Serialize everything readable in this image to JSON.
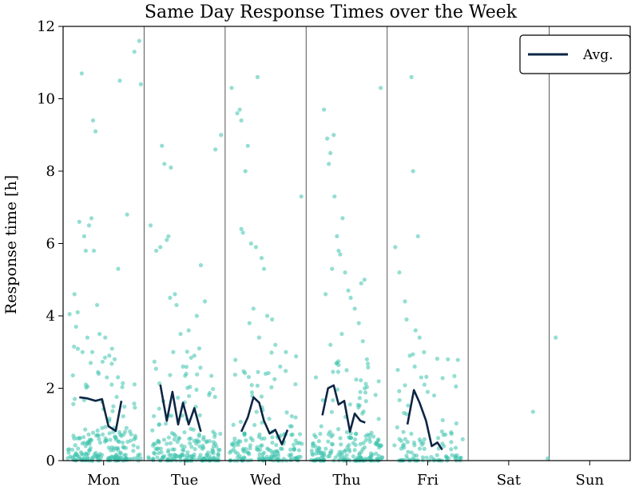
{
  "chart_data": {
    "type": "scatter",
    "title": "Same Day Response Times over the Week",
    "xlabel": "",
    "ylabel": "Response time [h]",
    "ylim": [
      0,
      12
    ],
    "yticks": [
      "0",
      "2",
      "4",
      "6",
      "8",
      "10",
      "12"
    ],
    "categories": [
      "Mon",
      "Tue",
      "Wed",
      "Thu",
      "Fri",
      "Sat",
      "Sun"
    ],
    "grid": false,
    "legend": {
      "position": "top-right",
      "entries": [
        "Avg."
      ]
    },
    "colors": {
      "points": "#3cc3ad",
      "avg_line": "#0d2545",
      "separator": "#555555"
    },
    "series": [
      {
        "name": "Avg.",
        "type": "line",
        "points": [
          {
            "x": -0.3,
            "y": 1.75
          },
          {
            "x": -0.2,
            "y": 1.72
          },
          {
            "x": -0.1,
            "y": 1.65
          },
          {
            "x": -0.02,
            "y": 1.7
          },
          {
            "x": 0.06,
            "y": 0.95
          },
          {
            "x": 0.15,
            "y": 0.82
          },
          {
            "x": 0.22,
            "y": 1.65
          },
          {
            "x": 0.7,
            "y": 2.1
          },
          {
            "x": 0.78,
            "y": 1.1
          },
          {
            "x": 0.85,
            "y": 1.9
          },
          {
            "x": 0.92,
            "y": 1.0
          },
          {
            "x": 0.98,
            "y": 1.6
          },
          {
            "x": 1.05,
            "y": 1.0
          },
          {
            "x": 1.12,
            "y": 1.45
          },
          {
            "x": 1.2,
            "y": 0.8
          },
          {
            "x": 1.7,
            "y": 0.8
          },
          {
            "x": 1.78,
            "y": 1.2
          },
          {
            "x": 1.85,
            "y": 1.75
          },
          {
            "x": 1.92,
            "y": 1.6
          },
          {
            "x": 1.98,
            "y": 1.1
          },
          {
            "x": 2.05,
            "y": 0.75
          },
          {
            "x": 2.12,
            "y": 0.85
          },
          {
            "x": 2.2,
            "y": 0.45
          },
          {
            "x": 2.27,
            "y": 0.85
          },
          {
            "x": 2.7,
            "y": 1.25
          },
          {
            "x": 2.77,
            "y": 2.0
          },
          {
            "x": 2.84,
            "y": 2.08
          },
          {
            "x": 2.9,
            "y": 1.55
          },
          {
            "x": 2.97,
            "y": 1.65
          },
          {
            "x": 3.04,
            "y": 0.8
          },
          {
            "x": 3.1,
            "y": 1.3
          },
          {
            "x": 3.17,
            "y": 1.1
          },
          {
            "x": 3.23,
            "y": 1.05
          },
          {
            "x": 3.75,
            "y": 1.0
          },
          {
            "x": 3.83,
            "y": 1.95
          },
          {
            "x": 3.9,
            "y": 1.6
          },
          {
            "x": 3.98,
            "y": 1.1
          },
          {
            "x": 4.05,
            "y": 0.4
          },
          {
            "x": 4.12,
            "y": 0.5
          },
          {
            "x": 4.18,
            "y": 0.3
          }
        ]
      }
    ],
    "scatter_points": [
      {
        "x": -0.42,
        "y": 4.05
      },
      {
        "x": -0.36,
        "y": 4.6
      },
      {
        "x": -0.34,
        "y": 3.7
      },
      {
        "x": -0.32,
        "y": 4.1
      },
      {
        "x": -0.3,
        "y": 6.6
      },
      {
        "x": -0.27,
        "y": 10.7
      },
      {
        "x": -0.24,
        "y": 6.2
      },
      {
        "x": -0.22,
        "y": 5.8
      },
      {
        "x": -0.2,
        "y": 3.4
      },
      {
        "x": -0.18,
        "y": 6.5
      },
      {
        "x": -0.15,
        "y": 6.7
      },
      {
        "x": -0.13,
        "y": 9.4
      },
      {
        "x": -0.1,
        "y": 9.1
      },
      {
        "x": -0.12,
        "y": 5.8
      },
      {
        "x": -0.08,
        "y": 4.3
      },
      {
        "x": -0.05,
        "y": 3.5
      },
      {
        "x": 0.02,
        "y": 3.4
      },
      {
        "x": 0.07,
        "y": 2.9
      },
      {
        "x": 0.1,
        "y": 2.1
      },
      {
        "x": 0.18,
        "y": 5.3
      },
      {
        "x": 0.2,
        "y": 10.5
      },
      {
        "x": 0.29,
        "y": 6.8
      },
      {
        "x": 0.38,
        "y": 11.3
      },
      {
        "x": 0.44,
        "y": 11.6
      },
      {
        "x": 0.46,
        "y": 10.4
      },
      {
        "x": -0.26,
        "y": 3.0
      },
      {
        "x": -0.16,
        "y": 2.7
      },
      {
        "x": -0.06,
        "y": 2.4
      },
      {
        "x": 0.12,
        "y": 1.5
      },
      {
        "x": 0.04,
        "y": 2.3
      },
      {
        "x": -0.22,
        "y": 2.1
      },
      {
        "x": -0.14,
        "y": 3.0
      },
      {
        "x": 0.42,
        "y": 0.08
      },
      {
        "x": 0.46,
        "y": 0.06
      },
      {
        "x": 0.72,
        "y": 8.7
      },
      {
        "x": 0.75,
        "y": 8.2
      },
      {
        "x": 0.8,
        "y": 6.2
      },
      {
        "x": 0.83,
        "y": 8.1
      },
      {
        "x": 0.58,
        "y": 6.5
      },
      {
        "x": 0.65,
        "y": 5.8
      },
      {
        "x": 0.7,
        "y": 5.9
      },
      {
        "x": 0.78,
        "y": 6.1
      },
      {
        "x": 0.82,
        "y": 4.5
      },
      {
        "x": 0.88,
        "y": 4.6
      },
      {
        "x": 0.9,
        "y": 4.3
      },
      {
        "x": 0.95,
        "y": 3.5
      },
      {
        "x": 1.05,
        "y": 3.6
      },
      {
        "x": 1.12,
        "y": 2.9
      },
      {
        "x": 1.18,
        "y": 3.1
      },
      {
        "x": 1.2,
        "y": 5.4
      },
      {
        "x": 1.15,
        "y": 4.0
      },
      {
        "x": 1.25,
        "y": 4.4
      },
      {
        "x": 1.45,
        "y": 9.0
      },
      {
        "x": 1.38,
        "y": 8.6
      },
      {
        "x": 1.58,
        "y": 10.3
      },
      {
        "x": 1.65,
        "y": 9.6
      },
      {
        "x": 1.68,
        "y": 9.7
      },
      {
        "x": 1.7,
        "y": 9.4
      },
      {
        "x": 0.86,
        "y": 3.0
      },
      {
        "x": 0.98,
        "y": 2.6
      },
      {
        "x": 1.02,
        "y": 2.4
      },
      {
        "x": 1.7,
        "y": 6.4
      },
      {
        "x": 1.75,
        "y": 8.0
      },
      {
        "x": 1.78,
        "y": 8.7
      },
      {
        "x": 1.72,
        "y": 6.3
      },
      {
        "x": 1.82,
        "y": 6.0
      },
      {
        "x": 1.85,
        "y": 4.2
      },
      {
        "x": 1.9,
        "y": 10.6
      },
      {
        "x": 1.88,
        "y": 5.9
      },
      {
        "x": 1.95,
        "y": 5.6
      },
      {
        "x": 1.98,
        "y": 5.3
      },
      {
        "x": 2.02,
        "y": 4.0
      },
      {
        "x": 2.08,
        "y": 3.9
      },
      {
        "x": 2.12,
        "y": 3.2
      },
      {
        "x": 2.18,
        "y": 2.6
      },
      {
        "x": 2.25,
        "y": 3.0
      },
      {
        "x": 2.35,
        "y": 0.3
      },
      {
        "x": 2.44,
        "y": 7.3
      },
      {
        "x": 1.92,
        "y": 3.4
      },
      {
        "x": 2.0,
        "y": 2.4
      },
      {
        "x": 1.8,
        "y": 3.8
      },
      {
        "x": 2.62,
        "y": 2.3
      },
      {
        "x": 2.72,
        "y": 9.7
      },
      {
        "x": 2.76,
        "y": 8.9
      },
      {
        "x": 2.8,
        "y": 8.5
      },
      {
        "x": 2.78,
        "y": 8.2
      },
      {
        "x": 2.84,
        "y": 9.0
      },
      {
        "x": 2.85,
        "y": 7.3
      },
      {
        "x": 2.88,
        "y": 6.2
      },
      {
        "x": 2.9,
        "y": 5.8
      },
      {
        "x": 2.92,
        "y": 5.7
      },
      {
        "x": 2.95,
        "y": 6.7
      },
      {
        "x": 2.82,
        "y": 5.3
      },
      {
        "x": 2.98,
        "y": 5.2
      },
      {
        "x": 3.02,
        "y": 4.7
      },
      {
        "x": 3.05,
        "y": 4.5
      },
      {
        "x": 3.1,
        "y": 4.2
      },
      {
        "x": 3.15,
        "y": 3.8
      },
      {
        "x": 3.18,
        "y": 4.9
      },
      {
        "x": 3.22,
        "y": 5.0
      },
      {
        "x": 3.2,
        "y": 3.3
      },
      {
        "x": 3.25,
        "y": 2.8
      },
      {
        "x": 3.3,
        "y": 0.2
      },
      {
        "x": 3.42,
        "y": 10.3
      },
      {
        "x": 2.74,
        "y": 4.6
      },
      {
        "x": 2.8,
        "y": 3.2
      },
      {
        "x": 2.88,
        "y": 2.7
      },
      {
        "x": 2.94,
        "y": 3.5
      },
      {
        "x": 3.0,
        "y": 2.5
      },
      {
        "x": 3.6,
        "y": 5.9
      },
      {
        "x": 3.65,
        "y": 5.2
      },
      {
        "x": 3.72,
        "y": 4.4
      },
      {
        "x": 3.74,
        "y": 3.9
      },
      {
        "x": 3.8,
        "y": 10.6
      },
      {
        "x": 3.82,
        "y": 8.0
      },
      {
        "x": 3.85,
        "y": 3.6
      },
      {
        "x": 3.88,
        "y": 6.2
      },
      {
        "x": 3.9,
        "y": 3.4
      },
      {
        "x": 3.78,
        "y": 2.9
      },
      {
        "x": 3.84,
        "y": 2.6
      },
      {
        "x": 3.92,
        "y": 2.3
      },
      {
        "x": 3.96,
        "y": 2.1
      },
      {
        "x": 4.0,
        "y": 1.9
      },
      {
        "x": 4.08,
        "y": 1.8
      },
      {
        "x": 4.2,
        "y": 0.4
      },
      {
        "x": 4.25,
        "y": 2.8
      },
      {
        "x": 4.3,
        "y": 0.15
      },
      {
        "x": 5.3,
        "y": 1.35
      },
      {
        "x": 5.48,
        "y": 0.06
      },
      {
        "x": 5.58,
        "y": 3.4
      }
    ],
    "dense_bands": [
      {
        "center": 0,
        "n_high": 70,
        "n_low": 130
      },
      {
        "center": 1,
        "n_high": 70,
        "n_low": 120
      },
      {
        "center": 2,
        "n_high": 60,
        "n_low": 110
      },
      {
        "center": 3,
        "n_high": 70,
        "n_low": 120
      },
      {
        "center": 4,
        "n_high": 35,
        "n_low": 60
      }
    ]
  }
}
